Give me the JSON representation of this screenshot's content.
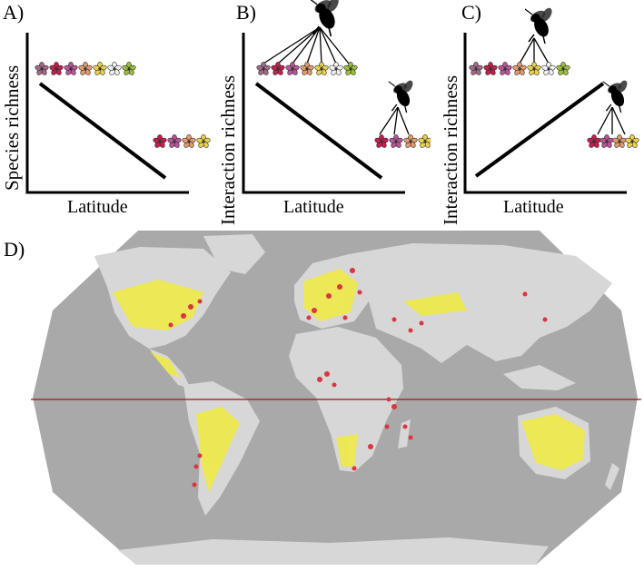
{
  "panels": [
    {
      "label": "A)",
      "ylabel": "Species richness",
      "xlabel": "Latitude",
      "trend": "decreasing",
      "bee": "none"
    },
    {
      "label": "B)",
      "ylabel": "Interaction richness",
      "xlabel": "Latitude",
      "trend": "decreasing",
      "bee": "many-links"
    },
    {
      "label": "C)",
      "ylabel": "Interaction richness",
      "xlabel": "Latitude",
      "trend": "increasing",
      "bee": "few-links"
    }
  ],
  "map": {
    "label": "D)",
    "colors": {
      "ocean": "#a9a9a9",
      "land": "#d7d7d7",
      "occurrences": "#f4ee2a",
      "sites": "#d9363e",
      "equator": "#8b1a1a"
    }
  },
  "flower_colors": [
    "#a36a87",
    "#c21f4d",
    "#b85596",
    "#e09a6d",
    "#e8d04a",
    "#f0f0f0",
    "#9bbd3c"
  ]
}
